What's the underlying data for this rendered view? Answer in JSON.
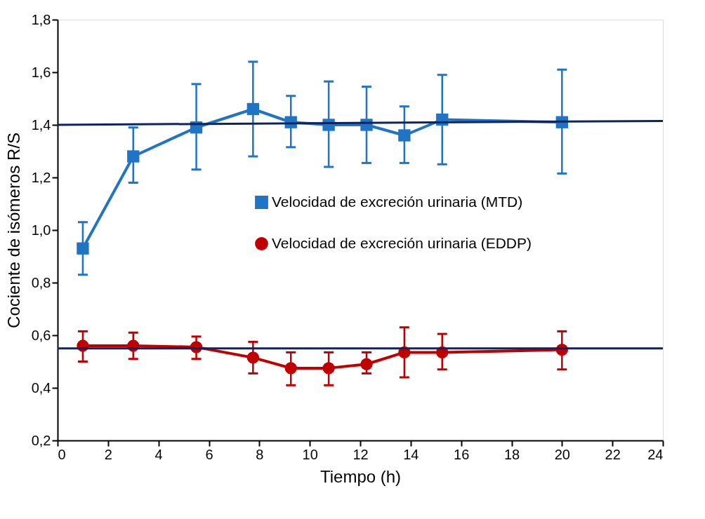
{
  "chart_data": {
    "type": "line",
    "xlabel": "Tiempo (h)",
    "ylabel": "Cociente de isómeros R/S",
    "xlim": [
      0,
      24
    ],
    "xticks": [
      0,
      2,
      4,
      6,
      8,
      10,
      12,
      14,
      16,
      18,
      20,
      22,
      24
    ],
    "ylim": [
      0.2,
      1.8
    ],
    "yticks": [
      {
        "value": 0.2,
        "label": "0,2"
      },
      {
        "value": 0.4,
        "label": "0,4"
      },
      {
        "value": 0.6,
        "label": "0,6"
      },
      {
        "value": 0.8,
        "label": "0,8"
      },
      {
        "value": 1.0,
        "label": "1,0"
      },
      {
        "value": 1.2,
        "label": "1,2"
      },
      {
        "value": 1.4,
        "label": "1,4"
      },
      {
        "value": 1.6,
        "label": "1,6"
      },
      {
        "value": 1.8,
        "label": "1,8"
      }
    ],
    "grid": false,
    "legend": "right",
    "series": [
      {
        "name": "Velocidad de excreción urinaria (MTD)",
        "color": "#1f74c4",
        "marker": "square",
        "x": [
          1,
          3,
          5.5,
          7.75,
          9.25,
          10.75,
          12.25,
          13.75,
          15.25,
          20
        ],
        "values": [
          0.93,
          1.28,
          1.39,
          1.46,
          1.41,
          1.4,
          1.4,
          1.36,
          1.42,
          1.41
        ],
        "errors": [
          [
            0.83,
            1.03
          ],
          [
            1.18,
            1.39
          ],
          [
            1.23,
            1.555
          ],
          [
            1.28,
            1.64
          ],
          [
            1.315,
            1.51
          ],
          [
            1.24,
            1.565
          ],
          [
            1.255,
            1.545
          ],
          [
            1.255,
            1.47
          ],
          [
            1.25,
            1.59
          ],
          [
            1.215,
            1.61
          ]
        ]
      },
      {
        "name": "Velocidad de excreción urinaria (EDDP)",
        "color": "#c00000",
        "marker": "circle",
        "x": [
          1,
          3,
          5.5,
          7.75,
          9.25,
          10.75,
          12.25,
          13.75,
          15.25,
          20
        ],
        "values": [
          0.56,
          0.56,
          0.555,
          0.515,
          0.475,
          0.475,
          0.49,
          0.535,
          0.535,
          0.545
        ],
        "errors": [
          [
            0.5,
            0.615
          ],
          [
            0.51,
            0.61
          ],
          [
            0.51,
            0.595
          ],
          [
            0.455,
            0.575
          ],
          [
            0.41,
            0.535
          ],
          [
            0.41,
            0.535
          ],
          [
            0.455,
            0.535
          ],
          [
            0.44,
            0.63
          ],
          [
            0.47,
            0.605
          ],
          [
            0.47,
            0.615
          ]
        ]
      },
      {
        "color": "#0c2461",
        "marker": "none",
        "x": [
          0,
          24
        ],
        "values": [
          1.4,
          1.415
        ]
      },
      {
        "color": "#0c2461",
        "marker": "none",
        "x": [
          0,
          24
        ],
        "values": [
          0.55,
          0.55
        ]
      }
    ]
  }
}
